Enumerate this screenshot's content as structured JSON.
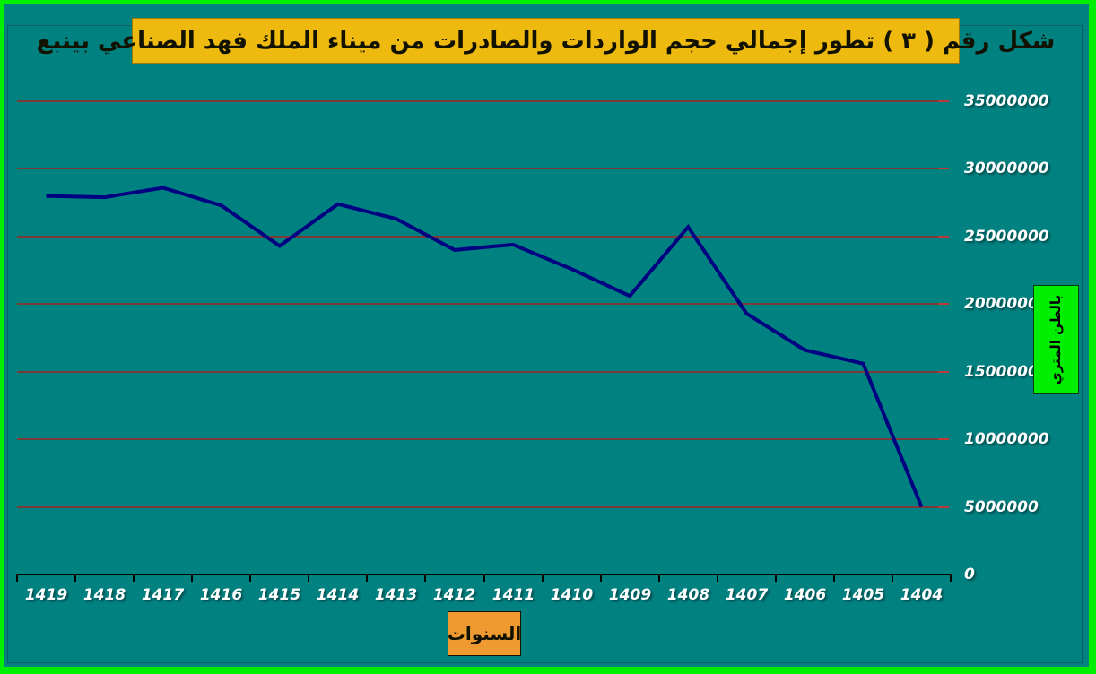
{
  "title": {
    "text": "شكل رقم ( ٣ )   تطور إجمالي  حجم الواردات والصادرات من ميناء الملك فهد الصناعي بينبع"
  },
  "x_axis": {
    "title": "السنوات"
  },
  "y_axis": {
    "title": "بالطن المتري"
  },
  "chart_data": {
    "type": "line",
    "title": "شكل رقم ( ٣ )   تطور إجمالي  حجم الواردات والصادرات من ميناء الملك فهد الصناعي بينبع",
    "categories": [
      "1419",
      "1418",
      "1417",
      "1416",
      "1415",
      "1414",
      "1413",
      "1412",
      "1411",
      "1410",
      "1409",
      "1408",
      "1407",
      "1406",
      "1405",
      "1404"
    ],
    "values": [
      28000000,
      27900000,
      28600000,
      27300000,
      24300000,
      27400000,
      26300000,
      24000000,
      24400000,
      22600000,
      20600000,
      25700000,
      19300000,
      16600000,
      15600000,
      5000000
    ],
    "xlabel": "السنوات",
    "ylabel": "بالطن المتري",
    "ylim": [
      0,
      35000000
    ],
    "y_ticks": [
      0,
      5000000,
      10000000,
      15000000,
      20000000,
      25000000,
      30000000,
      35000000
    ],
    "grid": true,
    "legend": false,
    "note": "years run descending left-to-right (1419 at left, 1404 at right); y tick labels on right side"
  },
  "colors": {
    "frame_green": "#00EE00",
    "background_teal": "#028181",
    "title_bg": "#EFBA10",
    "x_title_bg": "#EE9A31",
    "y_title_bg": "#00EE00",
    "gridline": "#7B3A3A",
    "gridline_end": "#C23838",
    "line": "#000080",
    "axis": "#000000",
    "tick_label": "#FFFFFF"
  }
}
